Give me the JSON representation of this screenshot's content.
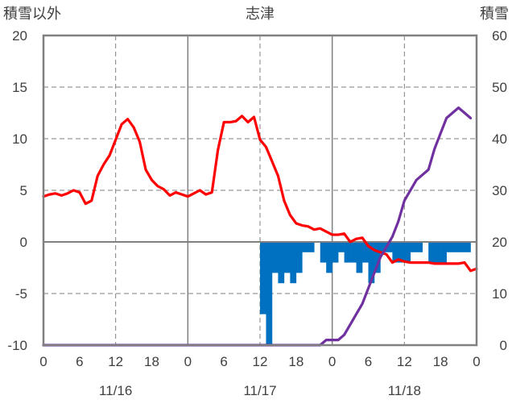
{
  "chart_data": {
    "type": "line",
    "title": "志津",
    "left_axis_label": "積雪以外",
    "right_axis_label": "積雪",
    "left_axis": {
      "min": -10,
      "max": 20,
      "ticks": [
        "20",
        "15",
        "10",
        "5",
        "0",
        "-5",
        "-10"
      ]
    },
    "right_axis": {
      "min": 0,
      "max": 60,
      "ticks": [
        "60",
        "50",
        "40",
        "30",
        "20",
        "10",
        "0"
      ]
    },
    "x_hours_total": 72,
    "x_tick_labels": [
      "0",
      "6",
      "12",
      "18",
      "0",
      "6",
      "12",
      "18",
      "0",
      "6",
      "12",
      "18",
      "0"
    ],
    "date_labels": [
      {
        "hour": 12,
        "text": "11/16"
      },
      {
        "hour": 36,
        "text": "11/17"
      },
      {
        "hour": 60,
        "text": "11/18"
      }
    ],
    "series": [
      {
        "axis": "left",
        "color": "#ff0000",
        "values": [
          4.4,
          4.6,
          4.7,
          4.5,
          4.7,
          5.0,
          4.8,
          3.7,
          4.0,
          6.4,
          7.5,
          8.4,
          9.9,
          11.4,
          11.9,
          11.1,
          9.7,
          7.0,
          6.0,
          5.4,
          5.1,
          4.5,
          4.8,
          4.6,
          4.4,
          4.7,
          5.0,
          4.6,
          4.8,
          8.9,
          11.6,
          11.6,
          11.7,
          12.2,
          11.6,
          12.1,
          9.9,
          9.2,
          7.8,
          6.4,
          4.0,
          2.6,
          1.8,
          1.6,
          1.5,
          1.2,
          1.3,
          1.0,
          0.7,
          0.7,
          0.8,
          0.0,
          0.3,
          0.4,
          -0.4,
          -0.8,
          -1.0,
          -1.2,
          -2.0,
          -1.7,
          -1.9,
          -2.0,
          -2.0,
          -2.0,
          -2.0,
          -2.1,
          -2.1,
          -2.1,
          -2.1,
          -2.1,
          -2.0,
          -2.8,
          -2.6
        ]
      },
      {
        "axis": "right",
        "color": "#7030a0",
        "values": [
          0,
          0,
          0,
          0,
          0,
          0,
          0,
          0,
          0,
          0,
          0,
          0,
          0,
          0,
          0,
          0,
          0,
          0,
          0,
          0,
          0,
          0,
          0,
          0,
          0,
          0,
          0,
          0,
          0,
          0,
          0,
          0,
          0,
          0,
          0,
          0,
          0,
          0,
          0,
          0,
          0,
          0,
          0,
          0,
          0,
          0,
          0,
          1,
          1,
          1,
          2,
          4,
          6,
          8,
          11,
          14,
          17,
          19,
          21,
          24,
          28,
          30,
          32,
          33,
          34,
          38,
          41,
          44,
          45,
          46,
          45,
          44
        ]
      },
      {
        "type": "bar",
        "axis": "left",
        "color": "#0070c0",
        "values": [
          0,
          0,
          0,
          0,
          0,
          0,
          0,
          0,
          0,
          0,
          0,
          0,
          0,
          0,
          0,
          0,
          0,
          0,
          0,
          0,
          0,
          0,
          0,
          0,
          0,
          0,
          0,
          0,
          0,
          0,
          0,
          0,
          0,
          0,
          0,
          0,
          -7,
          -10,
          -3,
          -4,
          -3,
          -4,
          -3,
          -1,
          -1,
          0,
          -2,
          -3,
          -2,
          -1,
          -2,
          -2,
          -3,
          -2,
          -4,
          -3,
          -1,
          -1,
          -2,
          -2,
          -2,
          -1,
          -1,
          0,
          -2,
          -2,
          -2,
          -1,
          -1,
          -1,
          -1,
          0
        ]
      }
    ],
    "grid": true
  }
}
